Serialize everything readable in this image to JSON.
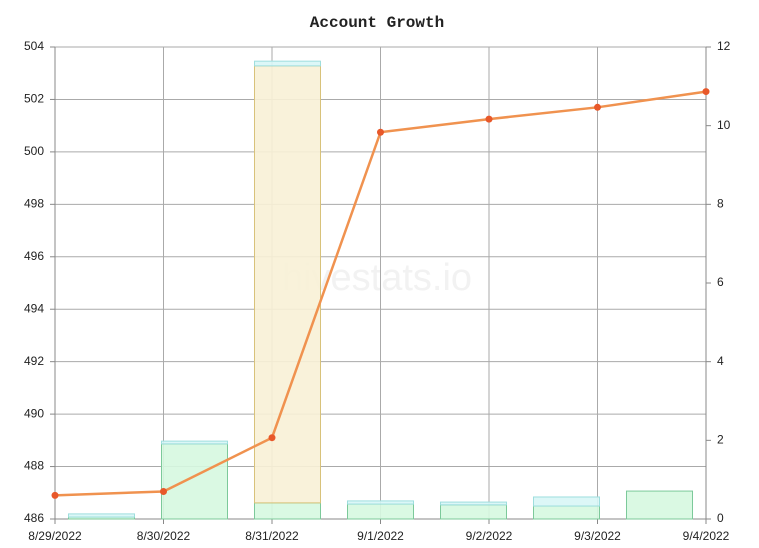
{
  "chart_data": {
    "type": "line",
    "title": "Account Growth",
    "watermark": "hivestats.io",
    "x": [
      "8/29/2022",
      "8/30/2022",
      "8/31/2022",
      "9/1/2022",
      "9/2/2022",
      "9/3/2022",
      "9/4/2022"
    ],
    "ylim": [
      486,
      504
    ],
    "yticks": [
      486,
      488,
      490,
      492,
      494,
      496,
      498,
      500,
      502,
      504
    ],
    "y2lim": [
      0,
      12
    ],
    "y2ticks": [
      0,
      2,
      4,
      6,
      8,
      10,
      12
    ],
    "grid": true,
    "series": [
      {
        "type": "line",
        "color": "#f0924f",
        "marker_color": "#e8582a",
        "values": [
          486.9,
          487.05,
          489.1,
          500.75,
          501.25,
          501.7,
          502.3
        ]
      },
      {
        "type": "bar",
        "axis": "y2",
        "color": "#d6f8e0",
        "edge": "#7cc99a",
        "values": [
          0.05,
          1.91,
          0.41,
          0.38,
          0.36,
          0.33,
          0.71
        ]
      },
      {
        "type": "bar",
        "axis": "y2",
        "color": "#f8f1d6",
        "edge": "#d8c27a",
        "values": [
          0,
          0,
          11.11,
          0,
          0,
          0,
          0
        ]
      },
      {
        "type": "bar",
        "axis": "y2",
        "color": "#d8f6f6",
        "edge": "#9edede",
        "values": [
          0.08,
          0.07,
          0.12,
          0.08,
          0.07,
          0.23,
          0
        ]
      }
    ]
  }
}
